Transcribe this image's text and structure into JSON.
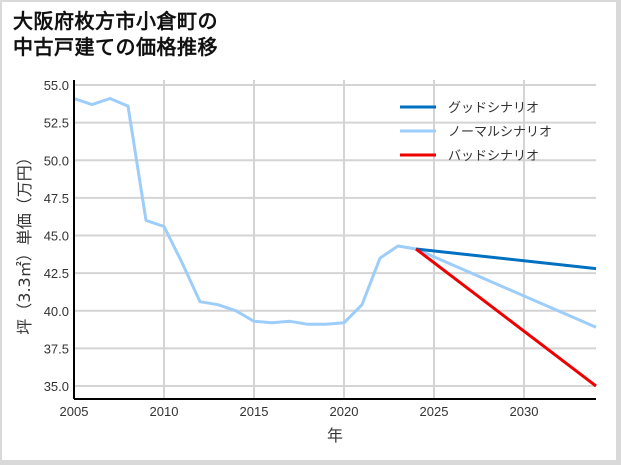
{
  "title_lines": [
    "大阪府枚方市小倉町の",
    "中古戸建ての価格推移"
  ],
  "chart_data": {
    "type": "line",
    "title": "大阪府枚方市小倉町の中古戸建ての価格推移",
    "xlabel": "年",
    "ylabel": "坪（3.3㎡）単価（万円）",
    "xlim": [
      2005,
      2034
    ],
    "ylim": [
      34.0,
      55.0
    ],
    "x_ticks": [
      2005,
      2010,
      2015,
      2020,
      2025,
      2030
    ],
    "y_ticks": [
      35.0,
      37.5,
      40.0,
      42.5,
      45.0,
      47.5,
      50.0,
      52.5,
      55.0
    ],
    "grid": true,
    "legend_position": "upper right",
    "series": [
      {
        "name": "グッドシナリオ",
        "color": "#0070c0",
        "x": [
          2024,
          2034
        ],
        "values": [
          44.1,
          42.8
        ]
      },
      {
        "name": "ノーマルシナリオ",
        "color": "#9dcdfb",
        "x": [
          2005,
          2006,
          2007,
          2008,
          2009,
          2010,
          2011,
          2012,
          2013,
          2014,
          2015,
          2016,
          2017,
          2018,
          2019,
          2020,
          2021,
          2022,
          2023,
          2024,
          2034
        ],
        "values": [
          54.1,
          53.7,
          54.1,
          53.6,
          46.0,
          45.6,
          43.2,
          40.6,
          40.4,
          40.0,
          39.3,
          39.2,
          39.3,
          39.1,
          39.1,
          39.2,
          40.4,
          43.5,
          44.3,
          44.1,
          38.9
        ]
      },
      {
        "name": "バッドシナリオ",
        "color": "#ee0000",
        "x": [
          2024,
          2034
        ],
        "values": [
          44.1,
          35.0
        ]
      }
    ]
  }
}
